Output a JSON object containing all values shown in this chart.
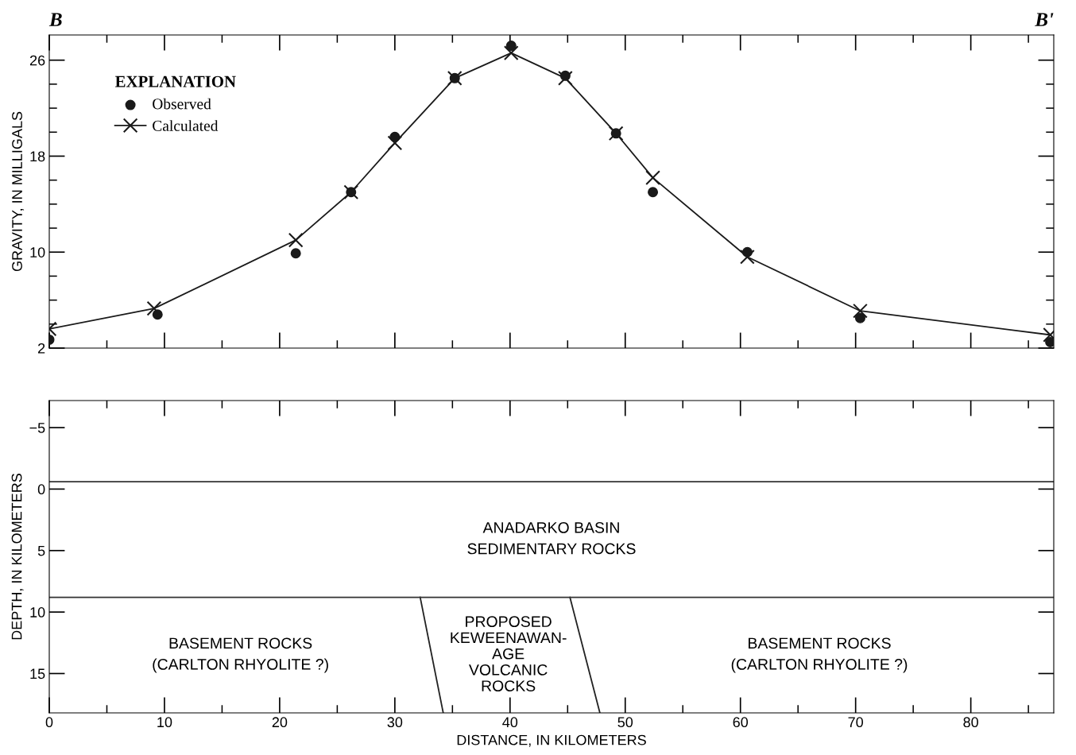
{
  "chart_data": [
    {
      "type": "line",
      "ylabel": "GRAVITY, IN MILLIGALS",
      "legend_title": "EXPLANATION",
      "legend": "top left",
      "tick_labels": "y",
      "annotations": [
        "B",
        "B'"
      ],
      "xlim": [
        0,
        87.2
      ],
      "ylim": [
        2,
        28.1
      ],
      "xticks": [
        0,
        {
          "value": 5,
          "label": null
        },
        10,
        {
          "value": 15,
          "label": null
        },
        20,
        {
          "value": 25,
          "label": null
        },
        30,
        {
          "value": 35,
          "label": null
        },
        40,
        {
          "value": 45,
          "label": null
        },
        50,
        {
          "value": 55,
          "label": null
        },
        60,
        {
          "value": 65,
          "label": null
        },
        70,
        {
          "value": 75,
          "label": null
        },
        80,
        {
          "value": 85,
          "label": null
        }
      ],
      "yticks": [
        2,
        {
          "value": 4,
          "label": null
        },
        {
          "value": 6,
          "label": null
        },
        {
          "value": 8,
          "label": null
        },
        10,
        {
          "value": 12,
          "label": null
        },
        {
          "value": 14,
          "label": null
        },
        {
          "value": 16,
          "label": null
        },
        18,
        {
          "value": 20,
          "label": null
        },
        {
          "value": 22,
          "label": null
        },
        {
          "value": 24,
          "label": null
        },
        26
      ],
      "series": [
        {
          "name": "Observed",
          "type": "scatter",
          "marker": "circle",
          "color": "#1a1a1a",
          "x": [
            0,
            9.4,
            21.4,
            26.2,
            30.0,
            35.2,
            40.1,
            44.8,
            49.2,
            52.4,
            60.6,
            70.4,
            86.9
          ],
          "values": [
            2.7,
            4.8,
            9.9,
            15.0,
            19.6,
            24.5,
            27.2,
            24.7,
            19.9,
            15.0,
            10.0,
            4.5,
            2.5
          ]
        },
        {
          "name": "Calculated",
          "marker": "cross",
          "line_style": "solid",
          "color": "#1a1a1a",
          "x": [
            0,
            9.1,
            21.4,
            26.2,
            30.0,
            35.2,
            40.1,
            44.8,
            49.2,
            52.4,
            60.6,
            70.4,
            86.9
          ],
          "values": [
            3.6,
            5.3,
            11.0,
            15.0,
            19.1,
            24.5,
            26.6,
            24.5,
            19.9,
            16.2,
            9.6,
            5.1,
            3.1
          ]
        }
      ]
    },
    {
      "type": "line",
      "xlabel": "DISTANCE, IN KILOMETERS",
      "ylabel": "DEPTH, IN KILOMETERS",
      "xlim": [
        0,
        87.2
      ],
      "ylim": [
        18.2,
        -7.2
      ],
      "xticks": [
        0,
        {
          "value": 5,
          "label": null
        },
        10,
        {
          "value": 15,
          "label": null
        },
        20,
        {
          "value": 25,
          "label": null
        },
        30,
        {
          "value": 35,
          "label": null
        },
        40,
        {
          "value": 45,
          "label": null
        },
        50,
        {
          "value": 55,
          "label": null
        },
        60,
        {
          "value": 65,
          "label": null
        },
        70,
        {
          "value": 75,
          "label": null
        },
        80,
        {
          "value": 85,
          "label": null
        }
      ],
      "yticks": [
        {
          "value": -5,
          "label": "−5"
        },
        0,
        5,
        10,
        15
      ],
      "ref_lines": [
        {
          "axis": "y",
          "value": -0.6,
          "color": "#333333"
        },
        {
          "axis": "y",
          "value": 8.8,
          "color": "#333333"
        }
      ],
      "series": [
        {
          "marker": "none",
          "line_style": "solid",
          "color": "#222222",
          "x": [
            32.2,
            34.2
          ],
          "values": [
            8.8,
            18.2
          ]
        },
        {
          "marker": "none",
          "line_style": "solid",
          "color": "#222222",
          "x": [
            45.2,
            47.8
          ],
          "values": [
            8.8,
            18.2
          ]
        }
      ],
      "annotations": [
        "ANADARKO BASIN\nSEDIMENTARY ROCKS",
        "BASEMENT ROCKS\n(CARLTON RHYOLITE ?)",
        "PROPOSED\nKEWEENAWAN-\nAGE\nVOLCANIC\nROCKS",
        "BASEMENT ROCKS\n(CARLTON RHYOLITE ?)"
      ]
    }
  ]
}
